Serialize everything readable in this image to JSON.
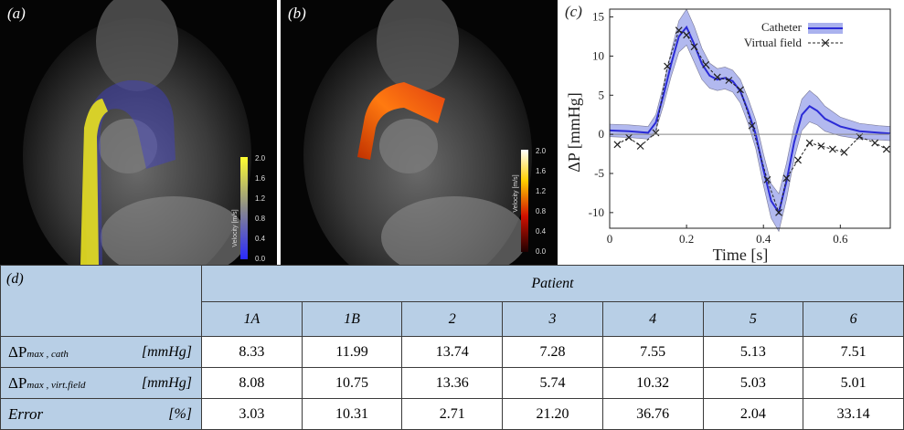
{
  "panels": {
    "a": {
      "label": "(a)",
      "colorbar": {
        "title": "Velocity [m/s]",
        "ticks": [
          "2.0",
          "1.6",
          "1.2",
          "0.8",
          "0.4",
          "0.0"
        ],
        "colors": [
          "#fffe30",
          "#2a2aff"
        ]
      }
    },
    "b": {
      "label": "(b)",
      "colorbar": {
        "title": "Velocity [m/s]",
        "ticks": [
          "2.0",
          "1.6",
          "1.2",
          "0.8",
          "0.4",
          "0.0"
        ],
        "colors": [
          "#ffffff",
          "#ffd000",
          "#d01000",
          "#200000"
        ]
      }
    },
    "c": {
      "label": "(c)"
    }
  },
  "chart_data": {
    "type": "line",
    "xlabel": "Time [s]",
    "ylabel": "ΔP [mmHg]",
    "xlim": [
      0,
      0.73
    ],
    "ylim": [
      -12,
      16
    ],
    "xticks": [
      0,
      0.2,
      0.4,
      0.6
    ],
    "xtick_labels": [
      "0",
      "0.2",
      "0.4",
      "0.6"
    ],
    "yticks": [
      -10,
      -5,
      0,
      5,
      10,
      15
    ],
    "ytick_labels": [
      "-10",
      "-5",
      "0",
      "5",
      "10",
      "15"
    ],
    "legend": [
      "Catheter",
      "Virtual field"
    ],
    "legend_position": "top-right",
    "series": [
      {
        "name": "Catheter",
        "color": "#2b2bd6",
        "band_color": "#aab2ee",
        "x": [
          0,
          0.05,
          0.1,
          0.12,
          0.14,
          0.16,
          0.18,
          0.2,
          0.22,
          0.24,
          0.26,
          0.28,
          0.3,
          0.32,
          0.34,
          0.36,
          0.38,
          0.4,
          0.42,
          0.44,
          0.46,
          0.48,
          0.5,
          0.52,
          0.54,
          0.56,
          0.6,
          0.65,
          0.7,
          0.73
        ],
        "y": [
          0.5,
          0.4,
          0.2,
          1.5,
          5,
          9,
          12.5,
          13.7,
          11.5,
          9,
          7.5,
          7,
          7.2,
          6.8,
          5.5,
          3,
          0,
          -4.5,
          -8.5,
          -10,
          -6,
          -1,
          2.5,
          3.6,
          3.0,
          2.0,
          1.0,
          0.4,
          0.2,
          0.1
        ],
        "band": [
          0.8,
          0.8,
          0.8,
          1.0,
          1.3,
          1.6,
          2,
          2.3,
          2.3,
          2,
          1.6,
          1.4,
          1.4,
          1.4,
          1.5,
          1.6,
          1.8,
          2.0,
          2.2,
          2.4,
          2.3,
          2.1,
          2.0,
          2.0,
          1.8,
          1.6,
          1.2,
          1.0,
          0.9,
          0.9
        ]
      },
      {
        "name": "Virtual field",
        "color": "#222222",
        "x": [
          0.02,
          0.05,
          0.08,
          0.12,
          0.15,
          0.18,
          0.2,
          0.22,
          0.25,
          0.28,
          0.31,
          0.34,
          0.37,
          0.41,
          0.44,
          0.46,
          0.49,
          0.52,
          0.55,
          0.58,
          0.61,
          0.65,
          0.69,
          0.72
        ],
        "y": [
          -1.3,
          -0.4,
          -1.5,
          0.2,
          8.7,
          13.3,
          12.7,
          11.2,
          8.9,
          7.3,
          6.9,
          5.7,
          1.1,
          -5.8,
          -10.0,
          -5.6,
          -3.3,
          -1.1,
          -1.5,
          -1.9,
          -2.3,
          -0.3,
          -1.1,
          -1.9
        ]
      }
    ]
  },
  "table": {
    "d_label": "(d)",
    "patient_header": "Patient",
    "columns": [
      "1A",
      "1B",
      "2",
      "3",
      "4",
      "5",
      "6"
    ],
    "rows": [
      {
        "sym": "ΔP",
        "sub": "max , cath",
        "unit": "[mmHg]",
        "values": [
          "8.33",
          "11.99",
          "13.74",
          "7.28",
          "7.55",
          "5.13",
          "7.51"
        ]
      },
      {
        "sym": "ΔP",
        "sub": "max , virt.field",
        "unit": "[mmHg]",
        "values": [
          "8.08",
          "10.75",
          "13.36",
          "5.74",
          "10.32",
          "5.03",
          "5.01"
        ]
      },
      {
        "sym": "Error",
        "sub": "",
        "unit": "[%]",
        "values": [
          "3.03",
          "10.31",
          "2.71",
          "21.20",
          "36.76",
          "2.04",
          "33.14"
        ]
      }
    ]
  }
}
